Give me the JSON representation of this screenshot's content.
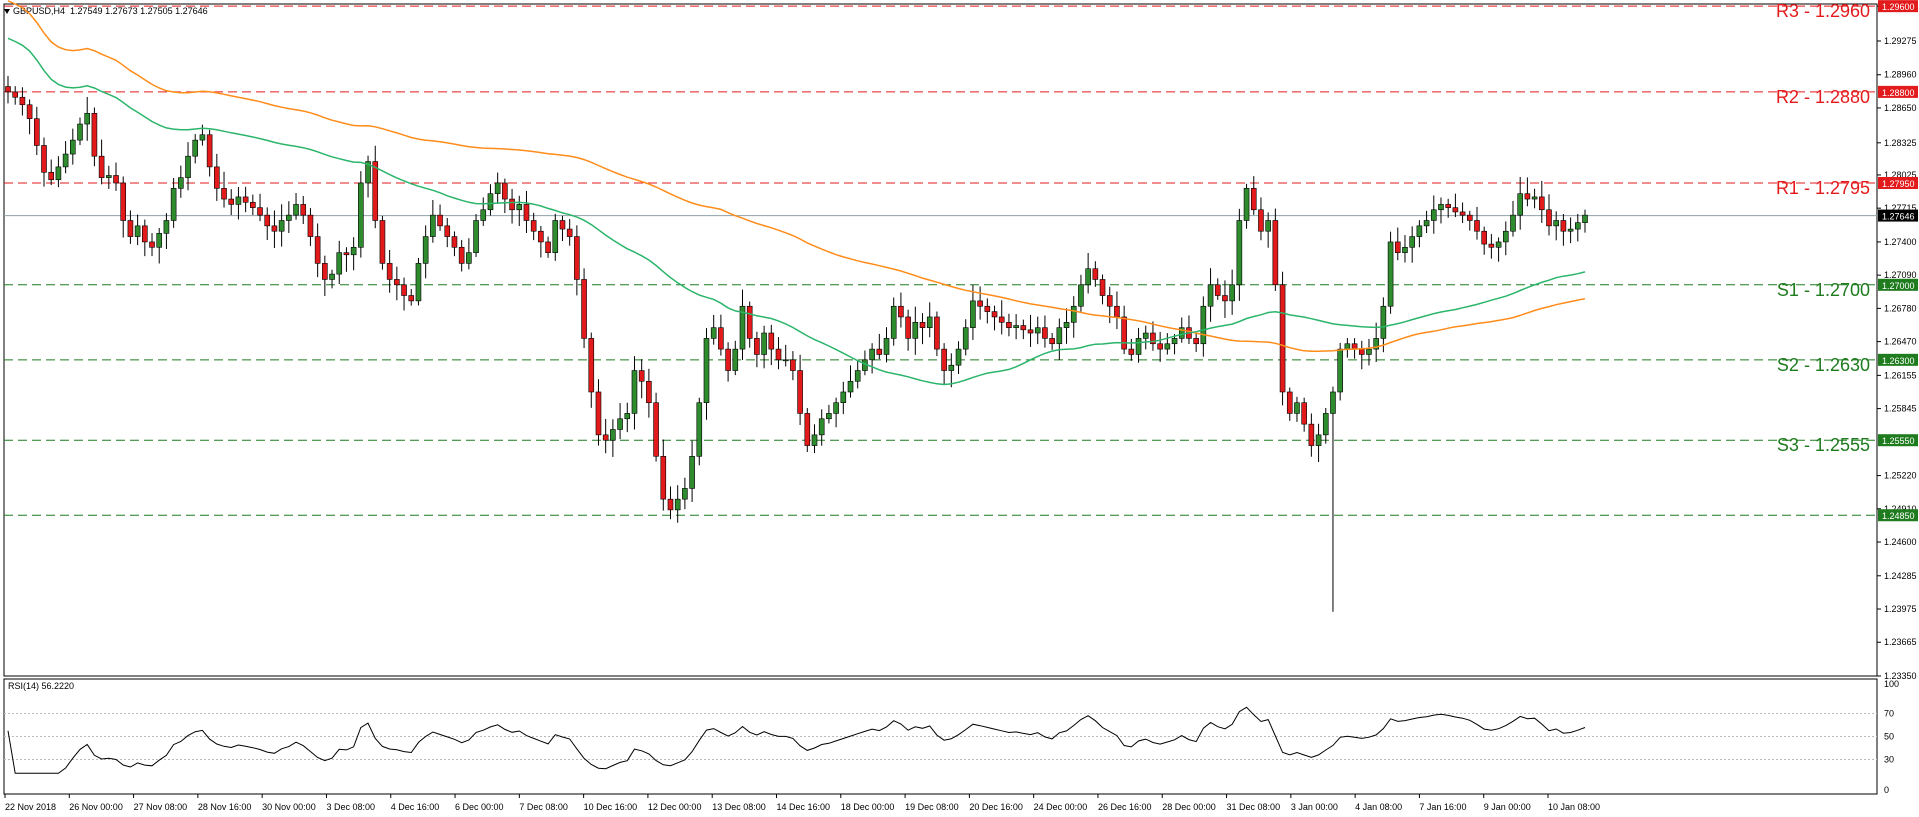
{
  "header": {
    "symbol": "GBPUSD,H4",
    "ohlc": "1.27549 1.27673 1.27505 1.27646"
  },
  "rsi_header": "RSI(14) 56.2220",
  "colors": {
    "bull": "#2e8b2e",
    "bear": "#e31a1c",
    "ma_fast": "#2bb56b",
    "ma_slow": "#ff8c1a",
    "resistance": "#e31a1c",
    "support": "#1e7b1e",
    "current_price": "#8fa0a8"
  },
  "chart_data": {
    "type": "candlestick",
    "instrument": "GBPUSD",
    "timeframe": "H4",
    "ylim": [
      1.2335,
      1.2962
    ],
    "y_ticks": [
      "1.29600",
      "1.29275",
      "1.28960",
      "1.28650",
      "1.28325",
      "1.28025",
      "1.27715",
      "1.27400",
      "1.27090",
      "1.26780",
      "1.26470",
      "1.26155",
      "1.25845",
      "1.25220",
      "1.24910",
      "1.24600",
      "1.24285",
      "1.23975",
      "1.23665",
      "1.23350"
    ],
    "x_labels": [
      "22 Nov 2018",
      "26 Nov 00:00",
      "27 Nov 08:00",
      "28 Nov 16:00",
      "30 Nov 00:00",
      "3 Dec 08:00",
      "4 Dec 16:00",
      "6 Dec 00:00",
      "7 Dec 08:00",
      "10 Dec 16:00",
      "12 Dec 00:00",
      "13 Dec 08:00",
      "14 Dec 16:00",
      "18 Dec 00:00",
      "19 Dec 08:00",
      "20 Dec 16:00",
      "24 Dec 00:00",
      "26 Dec 16:00",
      "28 Dec 00:00",
      "31 Dec 08:00",
      "3 Jan 00:00",
      "4 Jan 08:00",
      "7 Jan 16:00",
      "9 Jan 00:00",
      "10 Jan 08:00"
    ],
    "levels": [
      {
        "label": "R3 - 1.2960",
        "value": 1.296,
        "tag": "1.29600",
        "kind": "resistance"
      },
      {
        "label": "R2 - 1.2880",
        "value": 1.288,
        "tag": "1.28800",
        "kind": "resistance"
      },
      {
        "label": "R1 - 1.2795",
        "value": 1.2795,
        "tag": "1.27950",
        "kind": "resistance"
      },
      {
        "label": "S1 - 1.2700",
        "value": 1.27,
        "tag": "1.27000",
        "kind": "support"
      },
      {
        "label": "S2 - 1.2630",
        "value": 1.263,
        "tag": "1.26300",
        "kind": "support"
      },
      {
        "label": "S3 - 1.2555",
        "value": 1.2555,
        "tag": "1.25550",
        "kind": "support"
      }
    ],
    "extra_tag": {
      "value": 1.2485,
      "tag": "1.24850",
      "kind": "support"
    },
    "current_price": {
      "value": 1.27646,
      "tag": "1.27646"
    },
    "close_series": [
      1.288,
      1.2875,
      1.2868,
      1.2855,
      1.283,
      1.2805,
      1.2798,
      1.281,
      1.2822,
      1.2835,
      1.285,
      1.286,
      1.282,
      1.28,
      1.2802,
      1.2795,
      1.276,
      1.2745,
      1.2755,
      1.274,
      1.2735,
      1.2748,
      1.276,
      1.279,
      1.28,
      1.282,
      1.2835,
      1.284,
      1.281,
      1.279,
      1.278,
      1.2775,
      1.2782,
      1.2777,
      1.2772,
      1.2765,
      1.2755,
      1.275,
      1.276,
      1.2765,
      1.2775,
      1.2765,
      1.2745,
      1.272,
      1.2705,
      1.271,
      1.273,
      1.2728,
      1.2735,
      1.2795,
      1.2815,
      1.276,
      1.272,
      1.2705,
      1.27,
      1.269,
      1.2685,
      1.272,
      1.2745,
      1.2765,
      1.2755,
      1.2745,
      1.2735,
      1.272,
      1.273,
      1.276,
      1.277,
      1.2785,
      1.2795,
      1.278,
      1.277,
      1.2775,
      1.276,
      1.275,
      1.274,
      1.273,
      1.276,
      1.2752,
      1.2745,
      1.2705,
      1.265,
      1.26,
      1.256,
      1.2555,
      1.2565,
      1.2575,
      1.258,
      1.262,
      1.261,
      1.259,
      1.254,
      1.25,
      1.249,
      1.25,
      1.251,
      1.254,
      1.259,
      1.265,
      1.266,
      1.264,
      1.262,
      1.264,
      1.268,
      1.265,
      1.2635,
      1.2655,
      1.264,
      1.263,
      1.263,
      1.262,
      1.258,
      1.255,
      1.256,
      1.2575,
      1.258,
      1.259,
      1.26,
      1.261,
      1.262,
      1.263,
      1.264,
      1.2635,
      1.265,
      1.268,
      1.267,
      1.265,
      1.2665,
      1.266,
      1.267,
      1.264,
      1.262,
      1.2625,
      1.264,
      1.266,
      1.2685,
      1.268,
      1.2675,
      1.267,
      1.2665,
      1.266,
      1.2662,
      1.2658,
      1.2655,
      1.266,
      1.265,
      1.2645,
      1.266,
      1.2665,
      1.268,
      1.27,
      1.2715,
      1.2705,
      1.269,
      1.268,
      1.267,
      1.264,
      1.2635,
      1.265,
      1.2655,
      1.2645,
      1.264,
      1.2645,
      1.265,
      1.266,
      1.265,
      1.2645,
      1.268,
      1.27,
      1.269,
      1.2685,
      1.27,
      1.276,
      1.279,
      1.277,
      1.275,
      1.276,
      1.27,
      1.26,
      1.258,
      1.259,
      1.257,
      1.255,
      1.256,
      1.258,
      1.26,
      1.264,
      1.2645,
      1.264,
      1.2635,
      1.264,
      1.265,
      1.268,
      1.274,
      1.273,
      1.2735,
      1.2745,
      1.2755,
      1.276,
      1.277,
      1.2775,
      1.2772,
      1.2768,
      1.2765,
      1.276,
      1.275,
      1.2738,
      1.2735,
      1.274,
      1.275,
      1.2765,
      1.2785,
      1.278,
      1.2782,
      1.277,
      1.2755,
      1.276,
      1.275,
      1.2752,
      1.2758,
      1.2765
    ]
  }
}
